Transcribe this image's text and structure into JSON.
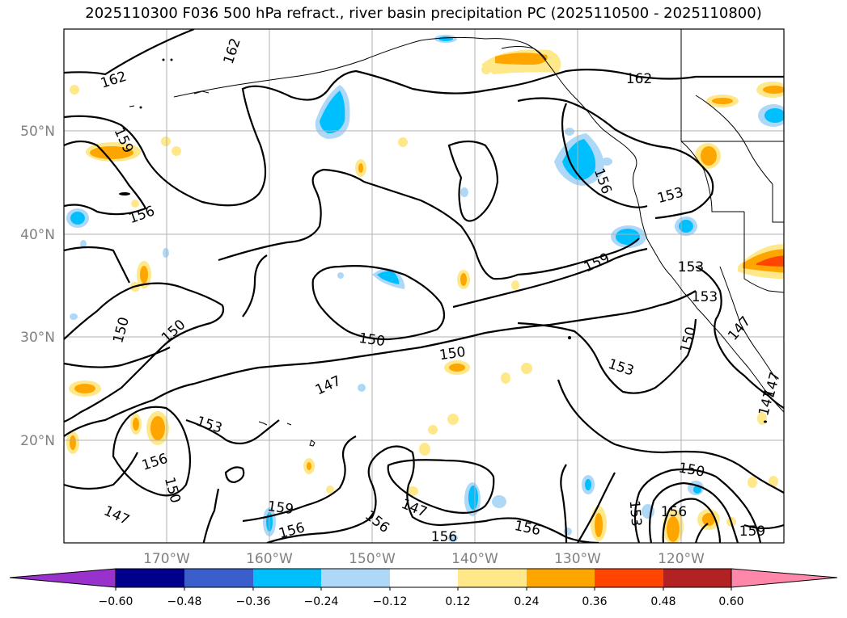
{
  "title": "2025110300 F036 500 hPa refract., river basin precipitation PC (2025110500 - 2025110800)",
  "map": {
    "lat_labels": [
      "50°N",
      "40°N",
      "30°N",
      "20°N"
    ],
    "lon_labels": [
      "170°W",
      "160°W",
      "150°W",
      "140°W",
      "130°W",
      "120°W"
    ],
    "contour_labels": [
      {
        "text": "162"
      },
      {
        "text": "162"
      },
      {
        "text": "162"
      },
      {
        "text": "159"
      },
      {
        "text": "159"
      },
      {
        "text": "159"
      },
      {
        "text": "159"
      },
      {
        "text": "156"
      },
      {
        "text": "156"
      },
      {
        "text": "156"
      },
      {
        "text": "156"
      },
      {
        "text": "156"
      },
      {
        "text": "156"
      },
      {
        "text": "156"
      },
      {
        "text": "156"
      },
      {
        "text": "153"
      },
      {
        "text": "153"
      },
      {
        "text": "153"
      },
      {
        "text": "153"
      },
      {
        "text": "153"
      },
      {
        "text": "153"
      },
      {
        "text": "150"
      },
      {
        "text": "150"
      },
      {
        "text": "150"
      },
      {
        "text": "150"
      },
      {
        "text": "150"
      },
      {
        "text": "150"
      },
      {
        "text": "150"
      },
      {
        "text": "147"
      },
      {
        "text": "147"
      },
      {
        "text": "147"
      },
      {
        "text": "147"
      },
      {
        "text": "147"
      },
      {
        "text": "147"
      }
    ]
  },
  "colorbar": {
    "colors": [
      "#9932cc",
      "#00008b",
      "#3a5fcd",
      "#00bfff",
      "#add8f7",
      "#ffffff",
      "#ffe88a",
      "#ffa500",
      "#ff4500",
      "#b22222",
      "#ff88aa"
    ],
    "tick_labels": [
      "−0.60",
      "−0.48",
      "−0.36",
      "−0.24",
      "−0.12",
      "0.12",
      "0.24",
      "0.36",
      "0.48",
      "0.60"
    ]
  }
}
